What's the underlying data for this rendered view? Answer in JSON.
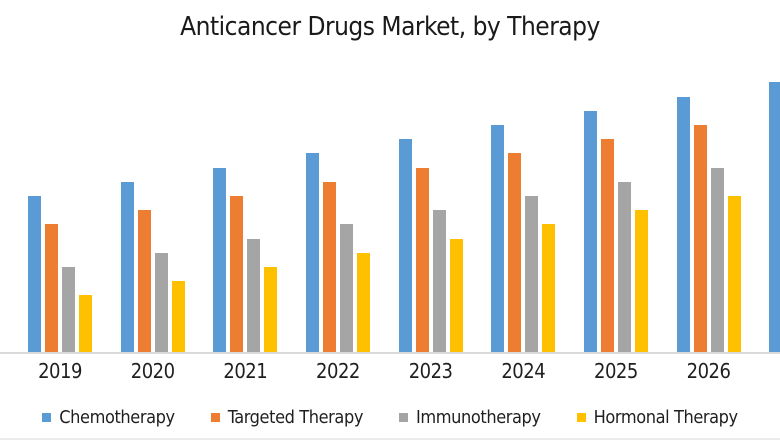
{
  "title": "Anticancer Drugs Market, by Therapy",
  "colors": {
    "chemotherapy": "#5B9BD5",
    "targeted_therapy": "#ED7D31",
    "immunotherapy": "#A5A5A5",
    "hormonal_therapy": "#FFC000",
    "axis_line": "#D9D9D9",
    "text": "#1F1F1F",
    "background": "#FFFFFF"
  },
  "legend": {
    "position": "bottom",
    "items": [
      {
        "label": "Chemotherapy",
        "color": "#5B9BD5"
      },
      {
        "label": "Targeted Therapy",
        "color": "#ED7D31"
      },
      {
        "label": "Immunotherapy",
        "color": "#A5A5A5"
      },
      {
        "label": "Hormonal Therapy",
        "color": "#FFC000"
      }
    ]
  },
  "chart_data": {
    "type": "bar",
    "title": "Anticancer Drugs Market, by Therapy",
    "categories": [
      "2019",
      "2020",
      "2021",
      "2022",
      "2023",
      "2024",
      "2025",
      "2026"
    ],
    "series": [
      {
        "name": "Chemotherapy",
        "color": "#5B9BD5",
        "values": [
          11,
          12,
          13,
          14,
          15,
          16,
          17,
          18
        ]
      },
      {
        "name": "Targeted Therapy",
        "color": "#ED7D31",
        "values": [
          9,
          10,
          11,
          12,
          13,
          14,
          15,
          16
        ]
      },
      {
        "name": "Immunotherapy",
        "color": "#A5A5A5",
        "values": [
          6,
          7,
          8,
          9,
          10,
          11,
          12,
          13
        ]
      },
      {
        "name": "Hormonal Therapy",
        "color": "#FFC000",
        "values": [
          4,
          5,
          6,
          7,
          8,
          9,
          10,
          11
        ]
      }
    ],
    "clipped_partial_bar": {
      "series": "Chemotherapy",
      "value": 19,
      "note": "extra blue bar partially visible at right image edge; its category label is not shown"
    },
    "xlabel": "",
    "ylabel": "",
    "value_axis_visible": false,
    "value_units": "relative (no value axis shown in chart)",
    "ylim": [
      0,
      21
    ],
    "grid": false,
    "legend_position": "bottom"
  }
}
